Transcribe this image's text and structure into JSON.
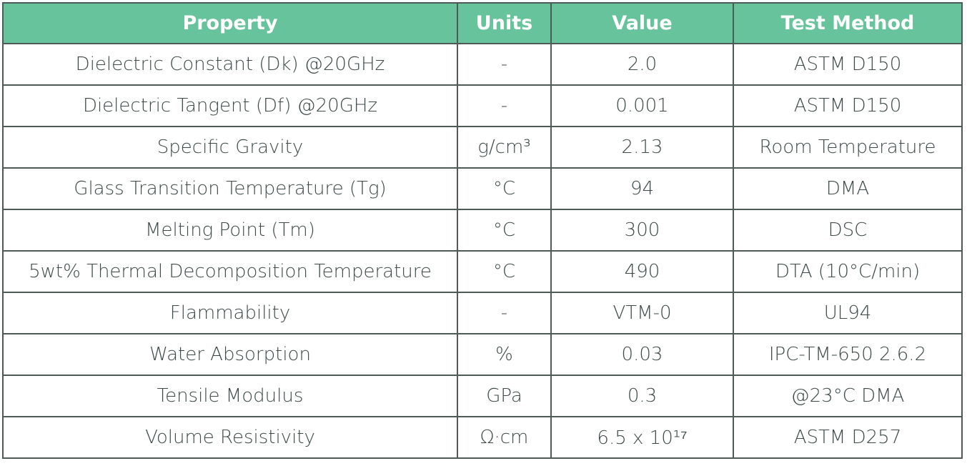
{
  "table": {
    "headers": [
      "Property",
      "Units",
      "Value",
      "Test Method"
    ],
    "rows": [
      [
        "Dielectric Constant (Dk) @20GHz",
        "-",
        "2.0",
        "ASTM D150"
      ],
      [
        "Dielectric Tangent (Df) @20GHz",
        "-",
        "0.001",
        "ASTM D150"
      ],
      [
        "Specific Gravity",
        "g/cm³",
        "2.13",
        "Room Temperature"
      ],
      [
        "Glass Transition Temperature (Tg)",
        "°C",
        "94",
        "DMA"
      ],
      [
        "Melting Point (Tm)",
        "°C",
        "300",
        "DSC"
      ],
      [
        "5wt% Thermal Decomposition Temperature",
        "°C",
        "490",
        "DTA (10°C/min)"
      ],
      [
        "Flammability",
        "-",
        "VTM-0",
        "UL94"
      ],
      [
        "Water Absorption",
        "%",
        "0.03",
        "IPC-TM-650 2.6.2"
      ],
      [
        "Tensile Modulus",
        "GPa",
        "0.3",
        "@23°C DMA"
      ],
      [
        "Volume Resistivity",
        "Ω·cm",
        "6.5 x 10¹⁷",
        "ASTM D257"
      ]
    ]
  }
}
